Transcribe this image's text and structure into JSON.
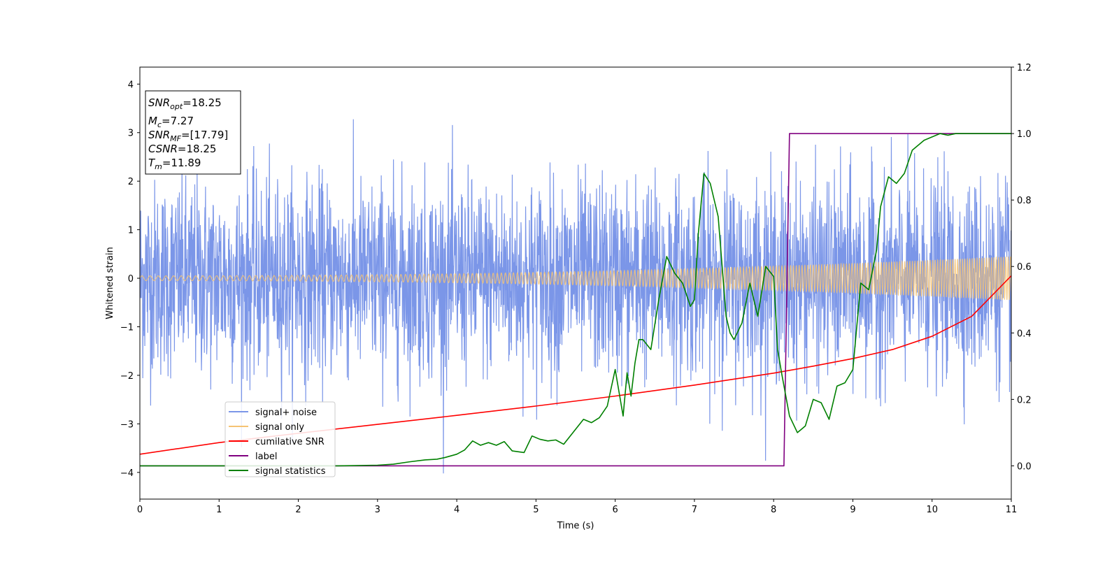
{
  "chart_data": {
    "type": "line",
    "xlabel": "Time (s)",
    "ylabel": "Whitened strain",
    "xlim": [
      0,
      11
    ],
    "ylim": [
      -4.55,
      4.35
    ],
    "y2lim": [
      -0.1,
      1.2
    ],
    "xticks": [
      "0",
      "1",
      "2",
      "3",
      "4",
      "5",
      "6",
      "7",
      "8",
      "9",
      "10",
      "11"
    ],
    "yticks": [
      "−4",
      "−3",
      "−2",
      "−1",
      "0",
      "1",
      "2",
      "3",
      "4"
    ],
    "y2ticks": [
      "0.0",
      "0.2",
      "0.4",
      "0.6",
      "0.8",
      "1.0",
      "1.2"
    ],
    "annotation": {
      "line1_main": "SNR",
      "line1_sub": "opt",
      "line1_val": "=18.25",
      "line2_main": "M",
      "line2_sub": "c",
      "line2_val": "=7.27",
      "line3_main": "SNR",
      "line3_sub": "MF",
      "line3_val": "=[17.79]",
      "line4_main": "CSNR",
      "line4_val": "=18.25",
      "line5_main": "T",
      "line5_sub": "m",
      "line5_val": "=11.89"
    },
    "legend_position": "lower-left",
    "series": [
      {
        "name": "signal+ noise",
        "axis": "left",
        "color": "#7b96e8",
        "kind": "noise",
        "approx_std": 1.0,
        "approx_range": [
          -4.15,
          3.87
        ]
      },
      {
        "name": "signal only",
        "axis": "left",
        "color": "#f5c374",
        "kind": "chirp",
        "amplitude_start": 0.05,
        "amplitude_end": 0.45
      },
      {
        "name": "cumilative SNR",
        "axis": "right",
        "color": "#ff0000",
        "x": [
          0,
          1,
          2,
          3,
          4,
          5,
          6,
          7,
          8,
          8.5,
          9,
          9.5,
          10,
          10.5,
          11
        ],
        "y": [
          0.035,
          0.07,
          0.098,
          0.125,
          0.152,
          0.18,
          0.21,
          0.243,
          0.279,
          0.3,
          0.323,
          0.35,
          0.39,
          0.45,
          0.572
        ]
      },
      {
        "name": "label",
        "axis": "right",
        "color": "#800080",
        "x": [
          0,
          8.13,
          8.2,
          11
        ],
        "y": [
          0,
          0,
          1,
          1
        ]
      },
      {
        "name": "signal statistics",
        "axis": "right",
        "color": "#008000",
        "x": [
          0,
          1,
          2,
          2.5,
          3,
          3.2,
          3.4,
          3.6,
          3.75,
          3.85,
          4.0,
          4.1,
          4.2,
          4.3,
          4.4,
          4.5,
          4.6,
          4.7,
          4.85,
          4.95,
          5.05,
          5.15,
          5.25,
          5.35,
          5.5,
          5.6,
          5.7,
          5.8,
          5.9,
          6.0,
          6.1,
          6.15,
          6.2,
          6.25,
          6.3,
          6.35,
          6.45,
          6.55,
          6.65,
          6.75,
          6.85,
          6.95,
          7.0,
          7.05,
          7.12,
          7.2,
          7.3,
          7.4,
          7.45,
          7.5,
          7.6,
          7.7,
          7.8,
          7.9,
          8.0,
          8.05,
          8.1,
          8.2,
          8.3,
          8.4,
          8.5,
          8.6,
          8.7,
          8.8,
          8.9,
          9.0,
          9.1,
          9.2,
          9.3,
          9.35,
          9.45,
          9.55,
          9.65,
          9.75,
          9.9,
          10.0,
          10.1,
          10.2,
          10.3,
          10.4,
          10.5,
          11.0
        ],
        "y": [
          0.0,
          0.0,
          0.0,
          0.0,
          0.002,
          0.005,
          0.012,
          0.018,
          0.02,
          0.025,
          0.035,
          0.048,
          0.075,
          0.062,
          0.07,
          0.062,
          0.073,
          0.045,
          0.04,
          0.09,
          0.08,
          0.075,
          0.078,
          0.065,
          0.11,
          0.14,
          0.13,
          0.145,
          0.18,
          0.29,
          0.15,
          0.28,
          0.21,
          0.31,
          0.38,
          0.38,
          0.35,
          0.5,
          0.63,
          0.58,
          0.55,
          0.48,
          0.5,
          0.7,
          0.88,
          0.85,
          0.75,
          0.45,
          0.4,
          0.38,
          0.43,
          0.55,
          0.45,
          0.6,
          0.57,
          0.35,
          0.28,
          0.15,
          0.1,
          0.12,
          0.2,
          0.19,
          0.14,
          0.24,
          0.25,
          0.29,
          0.55,
          0.53,
          0.65,
          0.78,
          0.87,
          0.85,
          0.88,
          0.95,
          0.98,
          0.99,
          1.0,
          0.995,
          1.0,
          1.0,
          1.0,
          1.0
        ]
      }
    ]
  }
}
